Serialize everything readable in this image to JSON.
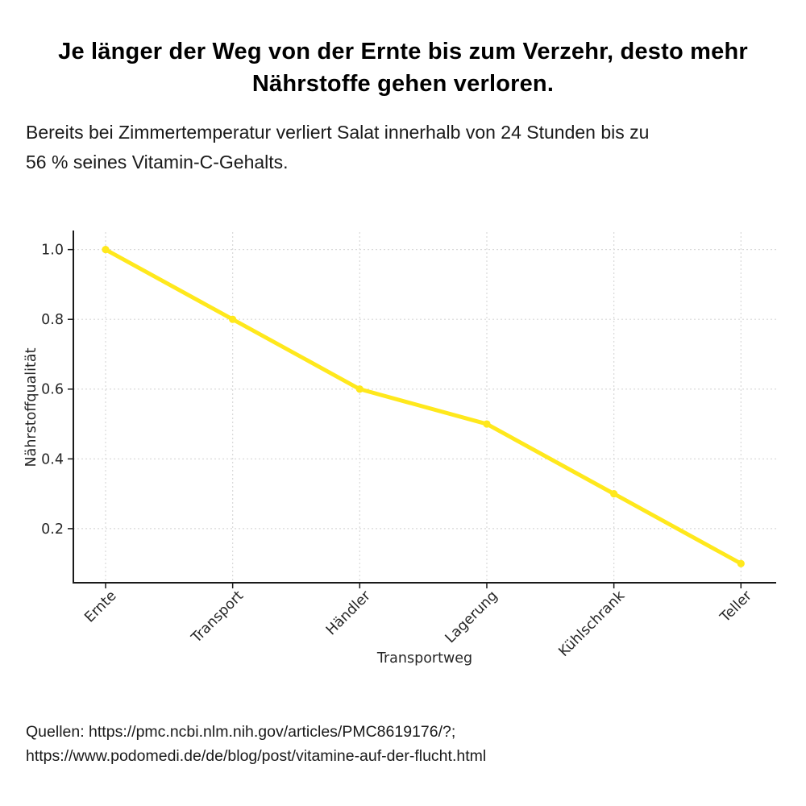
{
  "header": {
    "title_lines": [
      "Je länger der Weg von der Ernte bis zum Verzehr, desto mehr",
      "Nährstoffe gehen verloren."
    ],
    "subtitle_lines": [
      "Bereits bei Zimmertemperatur verliert Salat innerhalb von 24 Stunden bis zu",
      "56 % seines Vitamin-C-Gehalts."
    ]
  },
  "chart_data": {
    "type": "line",
    "categories": [
      "Ernte",
      "Transport",
      "Händler",
      "Lagerung",
      "Kühlschrank",
      "Teller"
    ],
    "values": [
      1.0,
      0.8,
      0.6,
      0.5,
      0.3,
      0.1
    ],
    "title": "",
    "xlabel": "Transportweg",
    "ylabel": "Nährstoffqualität",
    "yticks": [
      0.2,
      0.4,
      0.6,
      0.8,
      1.0
    ],
    "ylim": [
      0.045,
      1.05
    ],
    "grid": "dotted",
    "legend_position": "none",
    "line_color": "#ffe81c",
    "marker_color": "#ffe81c",
    "grid_color": "#d9d9d9",
    "axis_color": "#1a1a1a",
    "tick_label_color": "#262626"
  },
  "footer": {
    "sources_line1": "Quellen: https://pmc.ncbi.nlm.nih.gov/articles/PMC8619176/?;",
    "sources_line2": "https://www.podomedi.de/de/blog/post/vitamine-auf-der-flucht.html"
  }
}
